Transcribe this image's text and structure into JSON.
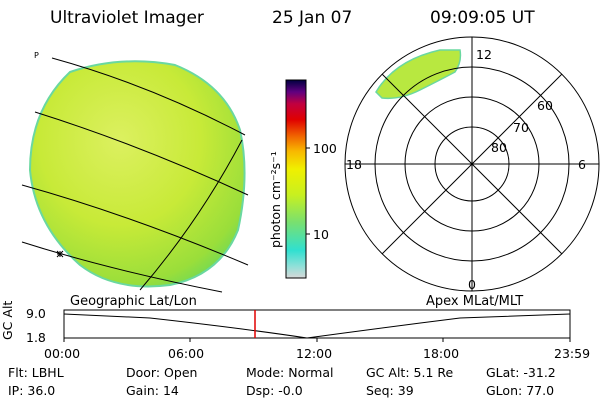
{
  "header": {
    "instrument": "Ultraviolet Imager",
    "date": "25 Jan 07",
    "time": "09:09:05 UT"
  },
  "map_panel": {
    "corner_mark": "P",
    "caption": "Geographic Lat/Lon"
  },
  "colorbar": {
    "label": "photon cm⁻²s⁻¹",
    "ticks": [
      "100",
      "10"
    ],
    "gradient": [
      "#d8d8d8",
      "#8fe0d8",
      "#30e0d0",
      "#78e070",
      "#c8f020",
      "#f0f000",
      "#f8b800",
      "#f06000",
      "#e00000",
      "#c00040",
      "#600080",
      "#000040"
    ]
  },
  "polar_panel": {
    "caption": "Apex MLat/MLT",
    "mlt_labels": {
      "top": "12",
      "right": "6",
      "bottom": "0",
      "left": "18"
    },
    "mlat_labels": [
      "60",
      "70",
      "80"
    ]
  },
  "altitude_plot": {
    "ylabel": "GC Alt",
    "y_ticks": [
      "9.0",
      "1.8"
    ],
    "x_ticks": [
      "00:00",
      "06:00",
      "12:00",
      "18:00",
      "23:59"
    ],
    "current_time_marker": "09:09",
    "marker_color": "#e00000"
  },
  "status": [
    [
      {
        "label": "Flt:",
        "value": "LBHL"
      },
      {
        "label": "Door:",
        "value": "Open"
      },
      {
        "label": "Mode:",
        "value": "Normal"
      },
      {
        "label": "GC Alt:",
        "value": "5.1 Re"
      },
      {
        "label": "GLat:",
        "value": "-31.2"
      }
    ],
    [
      {
        "label": "IP:",
        "value": "36.0"
      },
      {
        "label": "Gain:",
        "value": "14"
      },
      {
        "label": "Dsp:",
        "value": "-0.0"
      },
      {
        "label": "Seq:",
        "value": "39"
      },
      {
        "label": "GLon:",
        "value": "77.0"
      }
    ]
  ]
}
